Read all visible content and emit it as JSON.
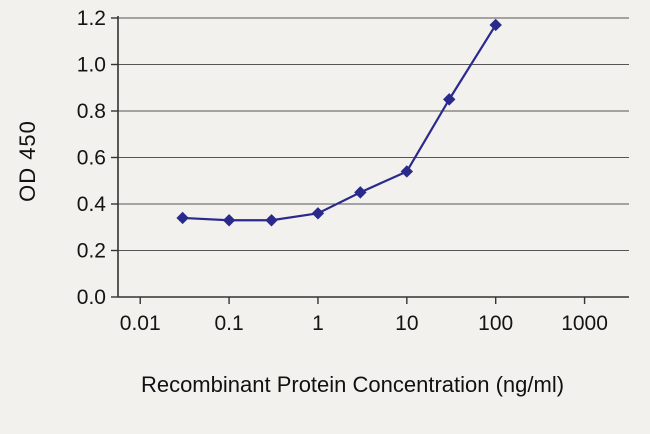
{
  "chart_data": {
    "type": "line",
    "title": "",
    "xlabel": "Recombinant Protein Concentration (ng/ml)",
    "ylabel": "OD 450",
    "x_scale": "log",
    "x": [
      0.03,
      0.1,
      0.3,
      1,
      3,
      10,
      30,
      100
    ],
    "y": [
      0.34,
      0.33,
      0.33,
      0.36,
      0.45,
      0.54,
      0.85,
      1.17
    ],
    "x_ticks": [
      {
        "value": 0.01,
        "label": "0.01"
      },
      {
        "value": 0.1,
        "label": "0.1"
      },
      {
        "value": 1,
        "label": "1"
      },
      {
        "value": 10,
        "label": "10"
      },
      {
        "value": 100,
        "label": "100"
      },
      {
        "value": 1000,
        "label": "1000"
      }
    ],
    "y_ticks": [
      {
        "value": 0.0,
        "label": "0.0"
      },
      {
        "value": 0.2,
        "label": "0.2"
      },
      {
        "value": 0.4,
        "label": "0.4"
      },
      {
        "value": 0.6,
        "label": "0.6"
      },
      {
        "value": 0.8,
        "label": "0.8"
      },
      {
        "value": 1.0,
        "label": "1.0"
      },
      {
        "value": 1.2,
        "label": "1.2"
      }
    ],
    "xlim_log": [
      -2.25,
      3.5
    ],
    "ylim": [
      0,
      1.2
    ],
    "grid": "horizontal",
    "legend": "none",
    "marker": "diamond",
    "colors": {
      "series": "#2a2a8c",
      "grid": "#555555",
      "axis": "#333333",
      "text": "#141414",
      "background": "#f2f1ed"
    }
  }
}
